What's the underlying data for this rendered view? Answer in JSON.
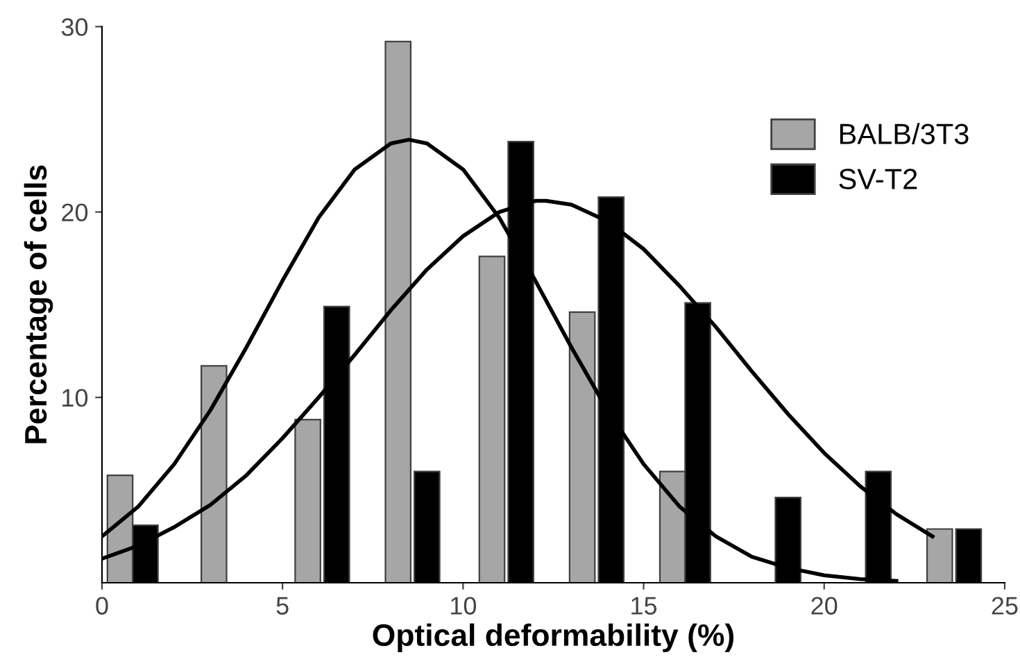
{
  "chart_data": {
    "type": "bar",
    "xlabel": "Optical deformability (%)",
    "ylabel": "Percentage of cells",
    "xlim": [
      0,
      25
    ],
    "xticks": [
      0,
      5,
      10,
      15,
      20,
      25
    ],
    "ylim": [
      0,
      30
    ],
    "yticks": [
      10,
      20,
      30
    ],
    "grid": false,
    "legend": "top right",
    "series": [
      {
        "name": "BALB/3T3",
        "color": "#a6a6a6",
        "x": [
          0.5,
          3.1,
          5.7,
          8.2,
          10.8,
          13.3,
          15.8,
          23.2
        ],
        "values": [
          5.8,
          11.7,
          8.8,
          29.2,
          17.6,
          14.6,
          6.0,
          2.9
        ]
      },
      {
        "name": "SV-T2",
        "color": "#000000",
        "x": [
          1.2,
          6.5,
          9.0,
          11.6,
          14.1,
          16.5,
          19.0,
          21.5,
          24.0
        ],
        "values": [
          3.1,
          14.9,
          6.0,
          23.8,
          20.8,
          15.1,
          4.6,
          6.0,
          2.9
        ]
      },
      {
        "color": "#000000",
        "type": "line",
        "x": [
          0,
          1,
          2,
          3,
          4,
          5,
          6,
          7,
          8,
          8.5,
          9,
          10,
          11,
          12,
          13,
          14,
          15,
          16,
          17,
          18,
          19,
          20,
          21,
          22
        ],
        "values": [
          2.5,
          4.1,
          6.4,
          9.3,
          12.7,
          16.3,
          19.7,
          22.3,
          23.7,
          23.9,
          23.7,
          22.3,
          19.7,
          16.3,
          12.7,
          9.3,
          6.4,
          4.1,
          2.5,
          1.4,
          0.8,
          0.4,
          0.2,
          0.1
        ]
      },
      {
        "color": "#000000",
        "type": "line",
        "x": [
          0,
          1,
          2,
          3,
          4,
          5,
          6,
          7,
          8,
          9,
          10,
          11,
          12,
          12.3,
          13,
          14,
          15,
          16,
          17,
          18,
          19,
          20,
          21,
          22,
          23
        ],
        "values": [
          1.3,
          2.0,
          3.0,
          4.2,
          5.8,
          7.8,
          10.0,
          12.3,
          14.7,
          16.9,
          18.7,
          20.0,
          20.6,
          20.6,
          20.4,
          19.5,
          18.0,
          16.0,
          13.8,
          11.4,
          9.1,
          7.0,
          5.2,
          3.7,
          2.5
        ]
      }
    ]
  }
}
